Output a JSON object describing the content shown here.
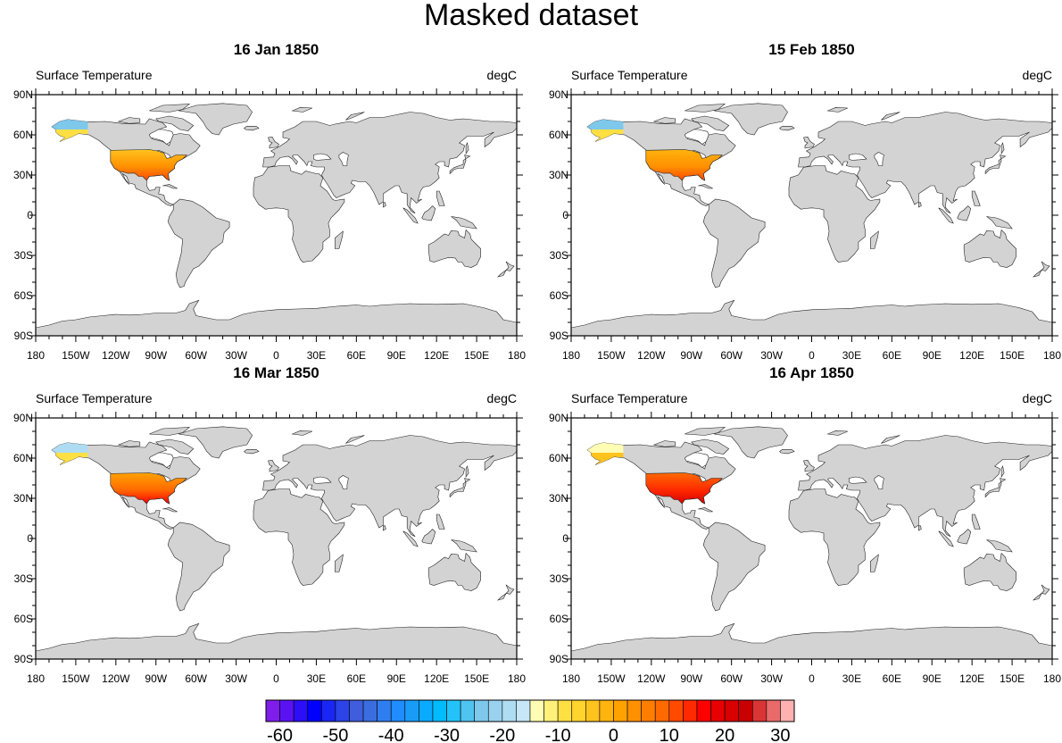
{
  "title": "Masked dataset",
  "panels": [
    {
      "title": "16 Jan 1850",
      "left_string": "Surface Temperature",
      "right_string": "degC",
      "month": "jan"
    },
    {
      "title": "15 Feb 1850",
      "left_string": "Surface Temperature",
      "right_string": "degC",
      "month": "feb"
    },
    {
      "title": "16 Mar 1850",
      "left_string": "Surface Temperature",
      "right_string": "degC",
      "month": "mar"
    },
    {
      "title": "16 Apr 1850",
      "left_string": "Surface Temperature",
      "right_string": "degC",
      "month": "apr"
    }
  ],
  "axes": {
    "lat_labels": [
      "90N",
      "60N",
      "30N",
      "0",
      "30S",
      "60S",
      "90S"
    ],
    "lat_values": [
      90,
      60,
      30,
      0,
      -30,
      -60,
      -90
    ],
    "lon_labels": [
      "180",
      "150W",
      "120W",
      "90W",
      "60W",
      "30W",
      "0",
      "30E",
      "60E",
      "90E",
      "120E",
      "150E",
      "180"
    ],
    "lon_values": [
      -180,
      -150,
      -120,
      -90,
      -60,
      -30,
      0,
      30,
      60,
      90,
      120,
      150,
      180
    ]
  },
  "colors": {
    "land": "#d3d3d3",
    "ocean": "#ffffff",
    "outline": "#222222"
  },
  "chart_data": {
    "type": "heatmap",
    "title": "Masked dataset",
    "variable": "Surface Temperature",
    "units": "degC",
    "xlim": [
      -180,
      180
    ],
    "ylim": [
      -90,
      90
    ],
    "subplots": [
      "16 Jan 1850",
      "15 Feb 1850",
      "16 Mar 1850",
      "16 Apr 1850"
    ],
    "masked_region": "data shown only over contiguous USA and Alaska; remaining land grey, ocean white",
    "regional_estimates_degC": {
      "16 Jan 1850": {
        "Alaska north": -25,
        "Alaska south": -10,
        "USA north/central": -5,
        "USA south": 10
      },
      "15 Feb 1850": {
        "Alaska north": -25,
        "Alaska south": -10,
        "USA north/central": -2,
        "USA south": 10
      },
      "16 Mar 1850": {
        "Alaska north": -20,
        "Alaska south": -8,
        "USA north/central": 2,
        "USA south": 15
      },
      "16 Apr 1850": {
        "Alaska north": -15,
        "Alaska south": -5,
        "USA north/central": 8,
        "USA south": 20
      }
    },
    "colorbar": {
      "levels_min": -60,
      "levels_max": 30,
      "level_spacing": 2.5,
      "labels": [
        "-60",
        "-50",
        "-40",
        "-30",
        "-20",
        "-10",
        "0",
        "10",
        "20",
        "30"
      ],
      "label_values": [
        -60,
        -50,
        -40,
        -30,
        -20,
        -10,
        0,
        10,
        20,
        30
      ],
      "colors": [
        "#7f1eea",
        "#5b12f2",
        "#2c0ef7",
        "#0000ff",
        "#1a26f5",
        "#2b43e8",
        "#3f5ddc",
        "#3a6de0",
        "#2f7ef0",
        "#1f8cff",
        "#199cf8",
        "#0aaaff",
        "#00bcff",
        "#23c3fa",
        "#50c4f0",
        "#7ec8ec",
        "#99d2ef",
        "#aedcf3",
        "#c5e7f7",
        "#fffdb3",
        "#fff07a",
        "#ffe043",
        "#ffd42d",
        "#ffc31e",
        "#ffb30e",
        "#ffa200",
        "#ff9000",
        "#ff7e00",
        "#ff6a00",
        "#ff4a00",
        "#ff2a00",
        "#ff0000",
        "#e80000",
        "#d80000",
        "#c80000",
        "#da3535",
        "#e86a6a",
        "#ffb0b0"
      ]
    }
  }
}
